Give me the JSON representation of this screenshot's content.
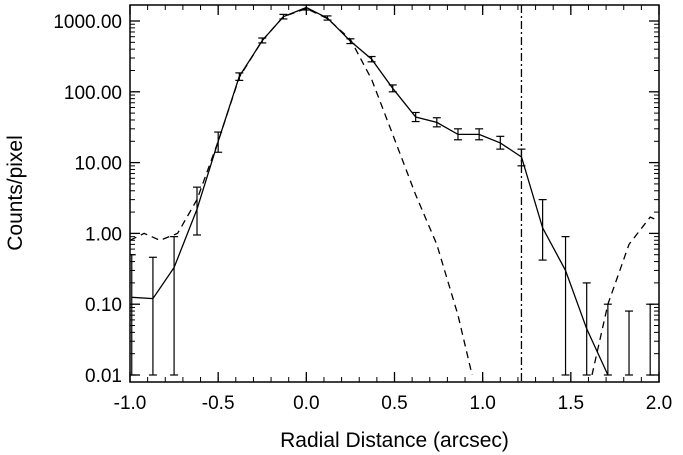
{
  "chart_data": {
    "type": "line",
    "title": "",
    "xlabel": "Radial Distance (arcsec)",
    "ylabel": "Counts/pixel",
    "xlim": [
      -1.0,
      2.0
    ],
    "ylim": [
      0.01,
      1000
    ],
    "yscale": "log",
    "grid": false,
    "x_ticks": [
      -1.0,
      -0.5,
      0.0,
      0.5,
      1.0,
      1.5,
      2.0
    ],
    "x_tick_labels": [
      "-1.0",
      "-0.5",
      "0.0",
      "0.5",
      "1.0",
      "1.5",
      "2.0"
    ],
    "y_ticks": [
      0.01,
      0.1,
      1,
      10,
      100,
      1000
    ],
    "y_tick_labels": [
      "0.01",
      "0.10",
      "1.00",
      "10.00",
      "100.00",
      "1000.00"
    ],
    "vertical_line_x": 1.22,
    "series": [
      {
        "style": "solid",
        "points": [
          {
            "x": -0.99,
            "y": 0.125,
            "lo": 0.01,
            "hi": 0.5
          },
          {
            "x": -0.87,
            "y": 0.12,
            "lo": 0.01,
            "hi": 0.46
          },
          {
            "x": -0.75,
            "y": 0.33,
            "lo": 0.01,
            "hi": 0.9
          },
          {
            "x": -0.62,
            "y": 2.2,
            "lo": 0.95,
            "hi": 4.5
          },
          {
            "x": -0.5,
            "y": 20,
            "lo": 14,
            "hi": 27
          },
          {
            "x": -0.38,
            "y": 165,
            "lo": 145,
            "hi": 185
          },
          {
            "x": -0.25,
            "y": 530,
            "lo": 490,
            "hi": 575
          },
          {
            "x": -0.13,
            "y": 1150,
            "lo": 1070,
            "hi": 1240
          },
          {
            "x": 0.0,
            "y": 1550,
            "lo": 1430,
            "hi": 1680
          },
          {
            "x": 0.12,
            "y": 1100,
            "lo": 1030,
            "hi": 1180
          },
          {
            "x": 0.25,
            "y": 520,
            "lo": 480,
            "hi": 560
          },
          {
            "x": 0.37,
            "y": 290,
            "lo": 265,
            "hi": 315
          },
          {
            "x": 0.49,
            "y": 112,
            "lo": 100,
            "hi": 125
          },
          {
            "x": 0.62,
            "y": 44,
            "lo": 38,
            "hi": 51
          },
          {
            "x": 0.74,
            "y": 37,
            "lo": 32,
            "hi": 43
          },
          {
            "x": 0.86,
            "y": 25,
            "lo": 21,
            "hi": 30
          },
          {
            "x": 0.98,
            "y": 25,
            "lo": 21,
            "hi": 30
          },
          {
            "x": 1.1,
            "y": 19,
            "lo": 15.5,
            "hi": 23.5
          },
          {
            "x": 1.22,
            "y": 12,
            "lo": 9,
            "hi": 15.5
          },
          {
            "x": 1.34,
            "y": 1.2,
            "lo": 0.42,
            "hi": 3.0
          },
          {
            "x": 1.47,
            "y": 0.3,
            "lo": 0.01,
            "hi": 0.9
          },
          {
            "x": 1.59,
            "y": 0.045,
            "lo": 0.01,
            "hi": 0.2
          },
          {
            "x": 1.71,
            "y": 0.01,
            "lo": 0.01,
            "hi": 0.1
          },
          {
            "x": 1.83,
            "y": null,
            "lo": 0.01,
            "hi": 0.08
          },
          {
            "x": 1.95,
            "y": null,
            "lo": 0.01,
            "hi": 0.1
          }
        ]
      },
      {
        "style": "dashed",
        "points": [
          {
            "x": -1.0,
            "y": 0.8
          },
          {
            "x": -0.92,
            "y": 1.0
          },
          {
            "x": -0.83,
            "y": 0.8
          },
          {
            "x": -0.73,
            "y": 1.0
          },
          {
            "x": -0.62,
            "y": 3.0
          },
          {
            "x": -0.5,
            "y": 20
          },
          {
            "x": -0.38,
            "y": 160
          },
          {
            "x": -0.25,
            "y": 530
          },
          {
            "x": -0.13,
            "y": 1150
          },
          {
            "x": 0.0,
            "y": 1500
          },
          {
            "x": 0.12,
            "y": 1080
          },
          {
            "x": 0.25,
            "y": 550
          },
          {
            "x": 0.37,
            "y": 150
          },
          {
            "x": 0.49,
            "y": 25
          },
          {
            "x": 0.62,
            "y": 3.5
          },
          {
            "x": 0.74,
            "y": 0.7
          },
          {
            "x": 0.86,
            "y": 0.07
          },
          {
            "x": 0.94,
            "y": 0.01
          }
        ],
        "tail_points": [
          {
            "x": 1.62,
            "y": 0.01
          },
          {
            "x": 1.71,
            "y": 0.1
          },
          {
            "x": 1.83,
            "y": 0.7
          },
          {
            "x": 1.95,
            "y": 1.7
          },
          {
            "x": 2.0,
            "y": 1.5
          }
        ]
      }
    ]
  }
}
